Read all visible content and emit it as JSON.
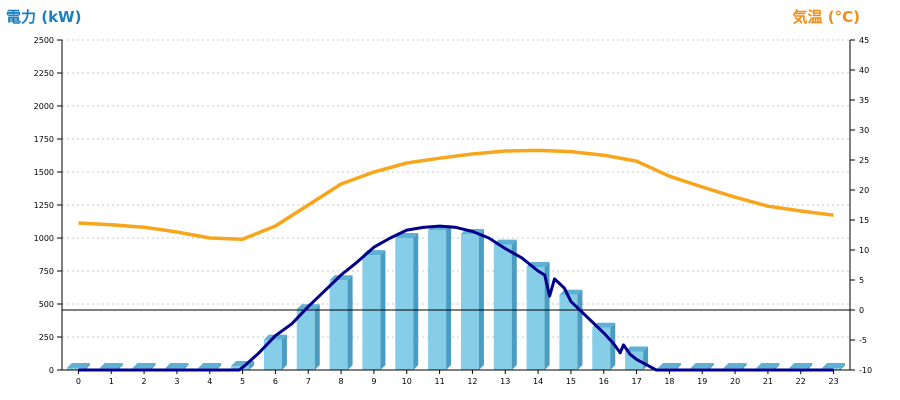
{
  "chart_data": {
    "type": "bar+line",
    "left_axis_title": "電力 (kW)",
    "right_axis_title": "気温 (°C)",
    "colors": {
      "left_title": "#1a7fc1",
      "right_title": "#f28c1b",
      "bar": "#86cde8",
      "bar_side": "#4a9cc0",
      "bar_top": "#5fb0d5",
      "power_line": "#00008b",
      "temp_line": "#f7a51a",
      "grid": "#c8c8c8",
      "zero_line": "#000000"
    },
    "x_ticks": [
      "0",
      "1",
      "2",
      "3",
      "4",
      "5",
      "6",
      "7",
      "8",
      "9",
      "10",
      "11",
      "12",
      "13",
      "14",
      "15",
      "16",
      "17",
      "18",
      "19",
      "20",
      "21",
      "22",
      "23"
    ],
    "left_ticks": [
      "2500",
      "2250",
      "2000",
      "1750",
      "1500",
      "1250",
      "1000",
      "750",
      "500",
      "250",
      "0"
    ],
    "right_ticks": [
      "45",
      "40",
      "35",
      "30",
      "25",
      "20",
      "15",
      "10",
      "5",
      "0",
      "-5",
      "-10"
    ],
    "ylim_left": [
      0,
      2500
    ],
    "ylim_right": [
      -10,
      45
    ],
    "grid": true,
    "series": [
      {
        "name": "hourly_power",
        "kind": "bar",
        "values": [
          15,
          15,
          15,
          15,
          15,
          30,
          230,
          460,
          680,
          870,
          1000,
          1060,
          1030,
          950,
          780,
          570,
          320,
          140,
          15,
          15,
          15,
          15,
          15,
          15
        ]
      },
      {
        "name": "power",
        "kind": "line",
        "x": [
          0,
          1,
          2,
          3,
          4,
          4.9,
          5.1,
          5.5,
          6,
          6.5,
          7,
          7.5,
          8,
          8.5,
          9,
          9.5,
          10,
          10.5,
          11,
          11.5,
          12,
          12.5,
          13,
          13.5,
          14,
          14.2,
          14.35,
          14.5,
          14.8,
          15,
          15.5,
          16,
          16.3,
          16.5,
          16.6,
          16.8,
          17,
          17.3,
          17.6,
          18,
          19,
          20,
          21,
          22,
          23
        ],
        "values": [
          0,
          0,
          0,
          0,
          0,
          0,
          40,
          130,
          260,
          350,
          480,
          600,
          720,
          820,
          930,
          1000,
          1060,
          1080,
          1090,
          1080,
          1050,
          1000,
          920,
          850,
          750,
          720,
          560,
          690,
          620,
          520,
          400,
          280,
          200,
          130,
          190,
          120,
          80,
          40,
          0,
          0,
          0,
          0,
          0,
          0,
          0
        ]
      },
      {
        "name": "temperature",
        "kind": "line",
        "axis": "right",
        "x": [
          0,
          1,
          2,
          3,
          4,
          5,
          6,
          7,
          8,
          9,
          10,
          11,
          12,
          13,
          14,
          15,
          16,
          17,
          18,
          19,
          20,
          21,
          22,
          23
        ],
        "values": [
          14.5,
          14.2,
          13.8,
          13.0,
          12.0,
          11.8,
          14.0,
          17.5,
          21.0,
          23.0,
          24.5,
          25.3,
          26.0,
          26.5,
          26.6,
          26.4,
          25.8,
          24.8,
          22.3,
          20.5,
          18.8,
          17.3,
          16.5,
          15.8
        ]
      }
    ]
  }
}
